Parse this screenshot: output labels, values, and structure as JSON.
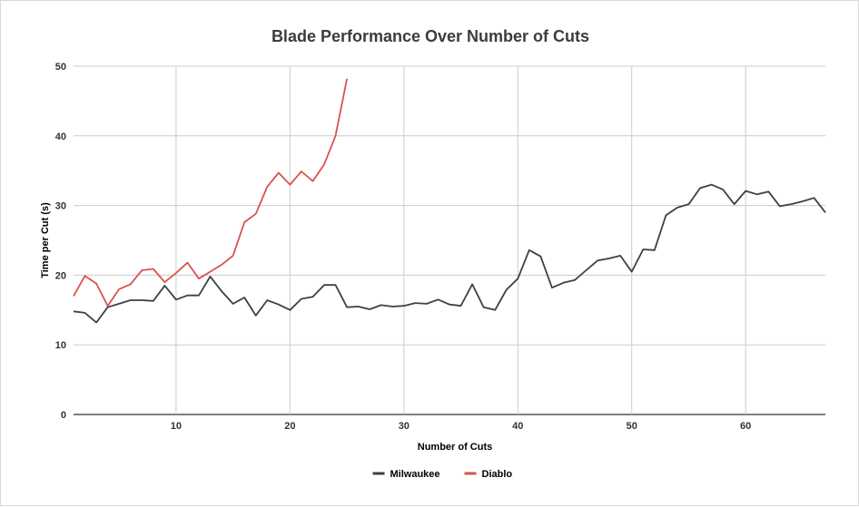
{
  "chart_data": {
    "type": "line",
    "title": "Blade Performance Over Number of Cuts",
    "xlabel": "Number of Cuts",
    "ylabel": "Time per Cut (s)",
    "xlim": [
      1,
      67
    ],
    "ylim": [
      0,
      50
    ],
    "x_ticks": [
      10,
      20,
      30,
      40,
      50,
      60
    ],
    "y_ticks": [
      0,
      10,
      20,
      30,
      40,
      50
    ],
    "grid": true,
    "legend_position": "bottom",
    "series": [
      {
        "name": "Milwaukee",
        "color": "#404040",
        "x": [
          1,
          2,
          3,
          4,
          5,
          6,
          7,
          8,
          9,
          10,
          11,
          12,
          13,
          14,
          15,
          16,
          17,
          18,
          19,
          20,
          21,
          22,
          23,
          24,
          25,
          26,
          27,
          28,
          29,
          30,
          31,
          32,
          33,
          34,
          35,
          36,
          37,
          38,
          39,
          40,
          41,
          42,
          43,
          44,
          45,
          46,
          47,
          48,
          49,
          50,
          51,
          52,
          53,
          54,
          55,
          56,
          57,
          58,
          59,
          60,
          61,
          62,
          63,
          64,
          65,
          66,
          67
        ],
        "values": [
          14.8,
          14.6,
          13.2,
          15.4,
          15.9,
          16.4,
          16.4,
          16.3,
          18.5,
          16.5,
          17.1,
          17.1,
          19.8,
          17.7,
          15.9,
          16.8,
          14.2,
          16.4,
          15.8,
          15.0,
          16.6,
          16.9,
          18.6,
          18.6,
          15.4,
          15.5,
          15.1,
          15.7,
          15.5,
          15.6,
          16.0,
          15.9,
          16.5,
          15.8,
          15.6,
          18.7,
          15.4,
          15.0,
          17.9,
          19.5,
          23.6,
          22.7,
          18.2,
          18.9,
          19.3,
          20.7,
          22.1,
          22.4,
          22.8,
          20.5,
          23.7,
          23.6,
          28.6,
          29.7,
          30.2,
          32.5,
          33.0,
          32.3,
          30.2,
          32.1,
          31.6,
          32.0,
          29.9,
          30.2,
          30.6,
          31.1,
          29.0
        ]
      },
      {
        "name": "Diablo",
        "color": "#d9534f",
        "x": [
          1,
          2,
          3,
          4,
          5,
          6,
          7,
          8,
          9,
          10,
          11,
          12,
          13,
          14,
          15,
          16,
          17,
          18,
          19,
          20,
          21,
          22,
          23,
          24,
          25
        ],
        "values": [
          17.0,
          19.9,
          18.8,
          15.6,
          18.0,
          18.7,
          20.7,
          20.9,
          19.0,
          20.3,
          21.8,
          19.5,
          20.5,
          21.5,
          22.8,
          27.6,
          28.8,
          32.7,
          34.7,
          33.0,
          34.9,
          33.5,
          35.9,
          40.0,
          48.2
        ]
      }
    ]
  }
}
